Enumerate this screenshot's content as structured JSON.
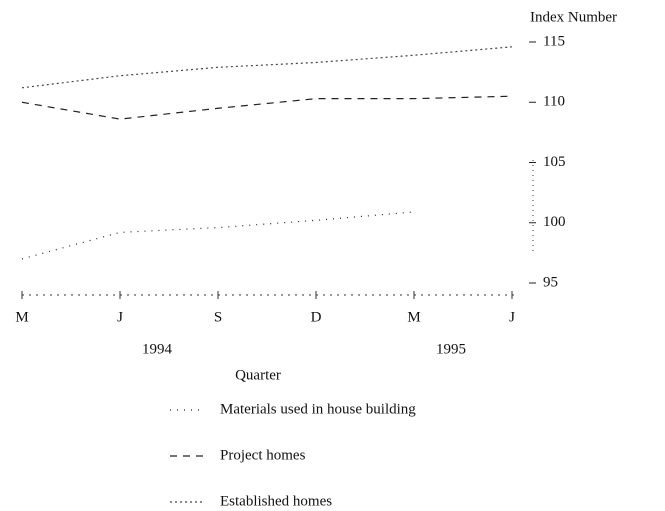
{
  "chart_data": {
    "type": "line",
    "y_axis_label": "Index Number",
    "x_axis_label": "Quarter",
    "categories": [
      "M",
      "J",
      "S",
      "D",
      "M",
      "J"
    ],
    "years": [
      "1994",
      "1995"
    ],
    "ylim": [
      95,
      115
    ],
    "yticks": [
      95,
      100,
      105,
      110,
      115
    ],
    "series": [
      {
        "name": "Materials used in house building",
        "color": "#222222",
        "dash": "1 6",
        "values": [
          97.0,
          99.2,
          99.6,
          100.2,
          100.9,
          null
        ]
      },
      {
        "name": "Project homes",
        "color": "#222222",
        "dash": "7 6",
        "values": [
          110.0,
          108.6,
          109.5,
          110.3,
          110.3,
          110.5
        ]
      },
      {
        "name": "Established homes",
        "color": "#444444",
        "dash": "2 3",
        "values": [
          111.2,
          112.2,
          112.9,
          113.3,
          113.9,
          114.6
        ]
      }
    ]
  }
}
